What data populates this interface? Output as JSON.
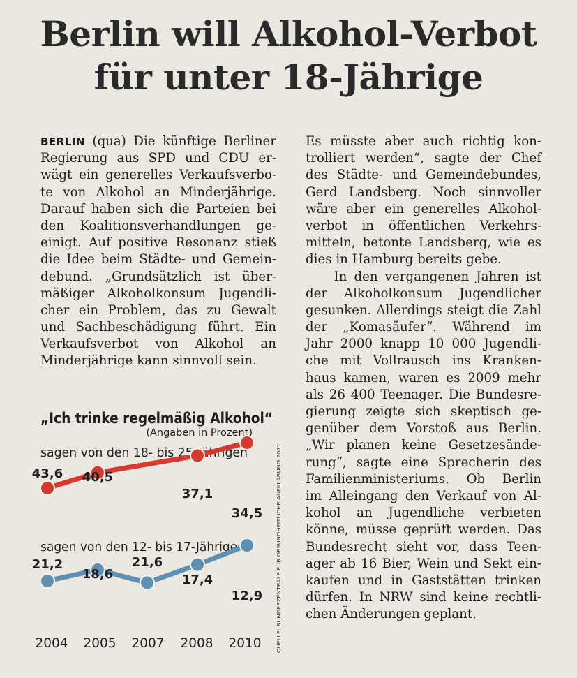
{
  "headline": {
    "line1": "Berlin will Alkohol-Verbot",
    "line2": "für unter 18-Jährige"
  },
  "article": {
    "dateline": "BERLIN",
    "left_column": [
      " (qua) Die künftige Berliner",
      "Regierung aus SPD und CDU er-",
      "wägt ein generelles Verkaufsverbo-",
      "te von Alkohol an Minderjährige.",
      "Darauf haben sich die Parteien bei",
      "den Koalitionsverhandlungen ge-",
      "einigt. Auf positive Resonanz stieß",
      "die Idee beim Städte- und Gemein-",
      "debund. „Grundsätzlich ist über-",
      "mäßiger Alkoholkonsum Jugendli-",
      "cher ein Problem, das zu Gewalt",
      "und Sachbeschädigung führt. Ein",
      "Verkaufsverbot von Alkohol an",
      "Minderjährige kann sinnvoll sein."
    ],
    "right_column": [
      "Es müsste aber auch richtig kon-",
      "trolliert werden“, sagte der Chef",
      "des Städte- und Gemeindebundes,",
      "Gerd Landsberg. Noch sinnvoller",
      "wäre aber ein generelles Alkohol-",
      "verbot in öffentlichen Verkehrs-",
      "mitteln, betonte Landsberg, wie es",
      "dies in Hamburg bereits gebe.",
      "    In den vergangenen Jahren ist",
      "der Alkoholkonsum Jugendlicher",
      "gesunken. Allerdings steigt die Zahl",
      "der „Komasäufer“. Während im",
      "Jahr 2000 knapp 10 000 Jugendli-",
      "che mit Vollrausch ins Kranken-",
      "haus kamen, waren es 2009 mehr",
      "als 26 400 Teenager. Die Bundesre-",
      "gierung zeigte sich skeptisch ge-",
      "genüber dem Vorstoß aus Berlin.",
      "„Wir planen keine Gesetzesände-",
      "rung“, sagte eine Sprecherin des",
      "Familienministeriums. Ob Berlin",
      "im Alleingang den Verkauf von Al-",
      "kohol an Jugendliche verbieten",
      "könne, müsse geprüft werden. Das",
      "Bundesrecht sieht vor, dass Teen-",
      "ager ab 16 Bier, Wein und Sekt ein-",
      "kaufen und in Gaststätten trinken",
      "dürfen. In NRW sind keine rechtli-",
      "chen Änderungen geplant."
    ]
  },
  "chart_data": {
    "type": "line",
    "title": "„Ich trinke regelmäßig Alkohol“",
    "subtitle": "(Angaben in Prozent)",
    "source": "QUELLE: BUNDESZENTRALE FÜR GESUNDHEITLICHE AUFKLÄRUNG 2011",
    "categories": [
      "2004",
      "2005",
      "2007",
      "2008",
      "2010"
    ],
    "series": [
      {
        "name": "sagen von den 18- bis 25-Jährigen",
        "values": [
          43.6,
          40.5,
          null,
          37.1,
          34.5
        ],
        "labels": [
          "43,6",
          "40,5",
          "",
          "37,1",
          "34,5"
        ],
        "color": "#d63a2f"
      },
      {
        "name": "sagen von den 12- bis 17-Jährigen",
        "values": [
          21.2,
          18.6,
          21.6,
          17.4,
          12.9
        ],
        "labels": [
          "21,2",
          "18,6",
          "21,6",
          "17,4",
          "12,9"
        ],
        "color": "#5e8fb5"
      }
    ],
    "grid": false,
    "legend": "inline above each series"
  }
}
